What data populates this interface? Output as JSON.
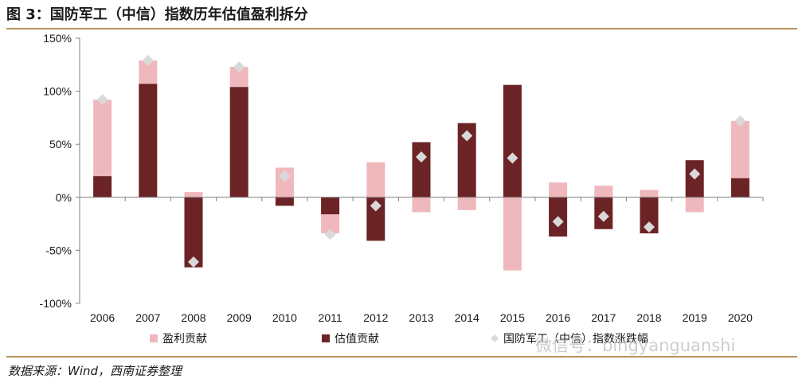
{
  "title": "图 3：国防军工（中信）指数历年估值盈利拆分",
  "source": "数据来源：Wind，西南证券整理",
  "watermark": "微信号：bingyanguanshi",
  "colors": {
    "earnings": "#efb8bd",
    "valuation": "#6b2325",
    "index": "#d9d9d9",
    "rule": "#b8925a"
  },
  "chart_data": {
    "type": "bar",
    "categories": [
      "2006",
      "2007",
      "2008",
      "2009",
      "2010",
      "2011",
      "2012",
      "2013",
      "2014",
      "2015",
      "2016",
      "2017",
      "2018",
      "2019",
      "2020"
    ],
    "series": [
      {
        "name": "盈利贡献",
        "type": "bar",
        "values": [
          72,
          22,
          5,
          19,
          28,
          -18,
          33,
          -14,
          -12,
          -69,
          14,
          11,
          7,
          -14,
          54
        ]
      },
      {
        "name": "估值贡献",
        "type": "bar",
        "values": [
          20,
          107,
          -66,
          104,
          -8,
          -16,
          -41,
          52,
          70,
          106,
          -37,
          -30,
          -34,
          35,
          18
        ]
      },
      {
        "name": "国防军工（中信）指数涨跌幅",
        "type": "scatter",
        "values": [
          92,
          129,
          -61,
          123,
          20,
          -35,
          -8,
          38,
          58,
          37,
          -23,
          -18,
          -28,
          22,
          72
        ]
      }
    ],
    "ylim": [
      -100,
      150
    ],
    "yticks": [
      "150%",
      "100%",
      "50%",
      "0%",
      "-50%",
      "-100%"
    ],
    "ytick_values": [
      150,
      100,
      50,
      0,
      -50,
      -100
    ],
    "legend": [
      "盈利贡献",
      "估值贡献",
      "国防军工（中信）指数涨跌幅"
    ],
    "legend_position": "bottom",
    "grid": false
  }
}
